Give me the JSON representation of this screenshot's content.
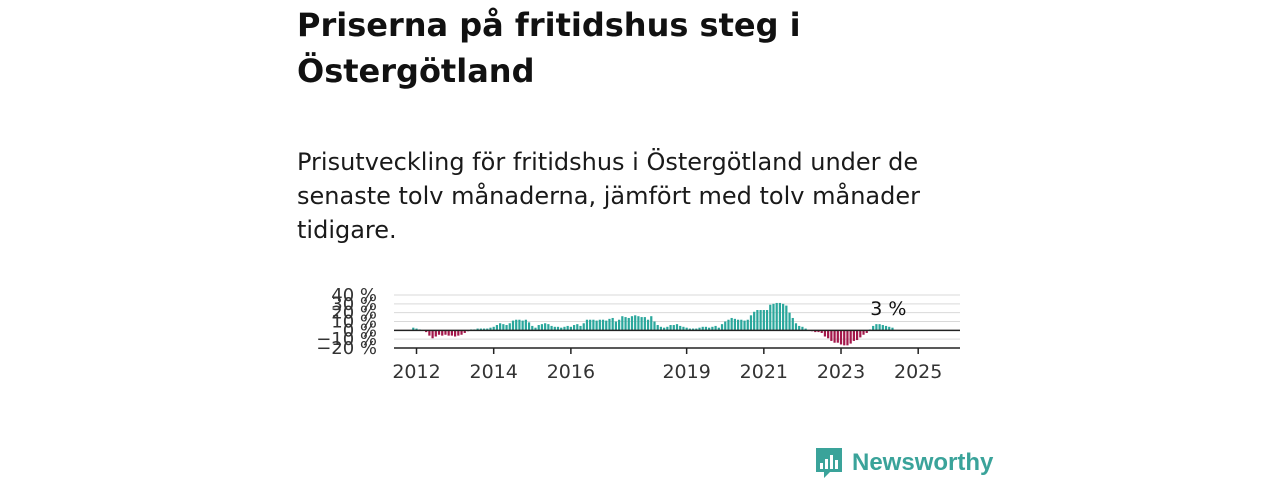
{
  "header": {
    "title": "Priserna på fritidshus steg i Östergötland",
    "subtitle": "Prisutveckling för fritidshus i Östergötland under de senaste tolv månaderna, jämfört med tolv månader tidigare."
  },
  "brand": {
    "name": "Newsworthy",
    "color": "#3aa39a"
  },
  "colors": {
    "positive": "#2aa79c",
    "negative": "#a3174a",
    "grid": "#d9d9d9",
    "axis": "#222222"
  },
  "chart_data": {
    "type": "bar",
    "title": "",
    "xlabel": "",
    "ylabel": "",
    "ylim": [
      -20,
      40
    ],
    "y_ticks": [
      -20,
      -10,
      0,
      10,
      20,
      30,
      40
    ],
    "y_tick_labels": [
      "−20 %",
      "−10 %",
      "0 %",
      "10 %",
      "20 %",
      "30 %",
      "40 %"
    ],
    "x_ticks": [
      "2012",
      "2014",
      "2016",
      "2019",
      "2021",
      "2023",
      "2025"
    ],
    "x_range": [
      "2011-06",
      "2026-02"
    ],
    "start": "2011-12",
    "frequency": "monthly",
    "values": [
      3,
      2,
      1,
      0,
      -2,
      -6,
      -9,
      -7,
      -5,
      -6,
      -5,
      -6,
      -6,
      -7,
      -6,
      -5,
      -3,
      -1,
      1,
      1,
      2,
      2,
      2,
      2,
      3,
      4,
      6,
      8,
      7,
      6,
      8,
      11,
      12,
      12,
      11,
      12,
      9,
      5,
      3,
      6,
      7,
      8,
      7,
      5,
      4,
      4,
      3,
      4,
      5,
      4,
      6,
      7,
      5,
      8,
      12,
      12,
      12,
      11,
      12,
      12,
      11,
      13,
      14,
      10,
      12,
      16,
      15,
      14,
      16,
      17,
      16,
      15,
      15,
      12,
      16,
      10,
      6,
      4,
      3,
      4,
      6,
      6,
      7,
      5,
      4,
      3,
      2,
      2,
      2,
      3,
      4,
      4,
      3,
      4,
      5,
      3,
      7,
      10,
      12,
      14,
      13,
      12,
      12,
      11,
      12,
      17,
      21,
      23,
      23,
      23,
      23,
      29,
      30,
      31,
      31,
      30,
      28,
      20,
      14,
      8,
      5,
      4,
      2,
      0,
      -1,
      -2,
      -2,
      -3,
      -7,
      -9,
      -12,
      -14,
      -14,
      -16,
      -17,
      -17,
      -15,
      -12,
      -11,
      -8,
      -5,
      -3,
      1,
      5,
      7,
      7,
      6,
      5,
      4,
      3
    ],
    "annotation": {
      "text": "3 %",
      "target": "last"
    }
  }
}
